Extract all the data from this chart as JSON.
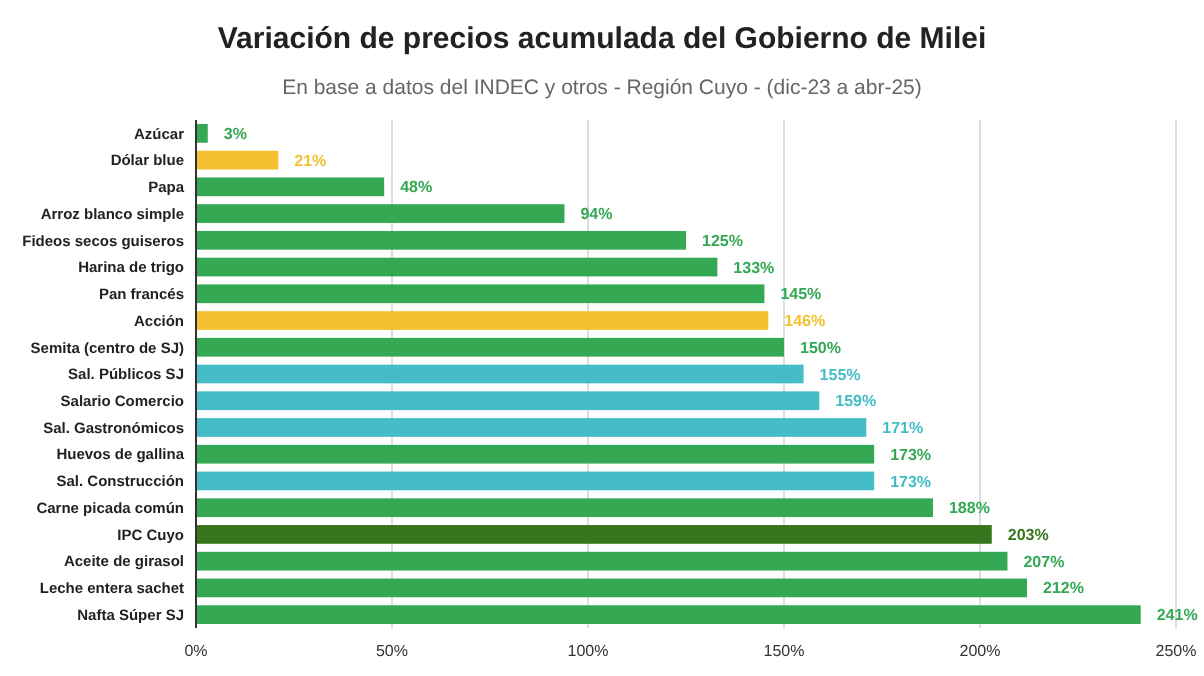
{
  "chart_data": {
    "type": "bar",
    "orientation": "horizontal",
    "title": "Variación de precios acumulada del Gobierno de Milei",
    "subtitle": "En base a datos del INDEC y otros - Región Cuyo - (dic-23 a abr-25)",
    "categories": [
      "Azúcar",
      "Dólar blue",
      "Papa",
      "Arroz blanco simple",
      "Fideos secos guiseros",
      "Harina de trigo",
      "Pan francés",
      "Acción",
      "Semita (centro de SJ)",
      "Sal. Públicos SJ",
      "Salario Comercio",
      "Sal. Gastronómicos",
      "Huevos de gallina",
      "Sal. Construcción",
      "Carne picada común",
      "IPC Cuyo",
      "Aceite de girasol",
      "Leche entera sachet",
      "Nafta Súper SJ"
    ],
    "values": [
      3,
      21,
      48,
      94,
      125,
      133,
      145,
      146,
      150,
      155,
      159,
      171,
      173,
      173,
      188,
      203,
      207,
      212,
      241
    ],
    "colors": [
      "#34a853",
      "#f4c030",
      "#34a853",
      "#34a853",
      "#34a853",
      "#34a853",
      "#34a853",
      "#f4c030",
      "#34a853",
      "#46bdc6",
      "#46bdc6",
      "#46bdc6",
      "#34a853",
      "#46bdc6",
      "#34a853",
      "#38761d",
      "#34a853",
      "#34a853",
      "#34a853"
    ],
    "value_labels": [
      "3%",
      "21%",
      "48%",
      "94%",
      "125%",
      "133%",
      "145%",
      "146%",
      "150%",
      "155%",
      "159%",
      "171%",
      "173%",
      "173%",
      "188%",
      "203%",
      "207%",
      "212%",
      "241%"
    ],
    "xlim": [
      0,
      250
    ],
    "xticks": [
      {
        "value": 0,
        "label": "0%"
      },
      {
        "value": 50,
        "label": "50%"
      },
      {
        "value": 100,
        "label": "100%"
      },
      {
        "value": 150,
        "label": "150%"
      },
      {
        "value": 200,
        "label": "200%"
      },
      {
        "value": 250,
        "label": "250%"
      }
    ],
    "grid": "x"
  }
}
